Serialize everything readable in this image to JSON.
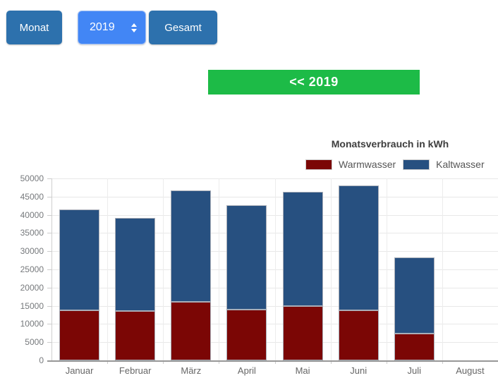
{
  "toolbar": {
    "monat_label": "Monat",
    "year_value": "2019",
    "gesamt_label": "Gesamt"
  },
  "year_nav": {
    "label": "<< 2019"
  },
  "colors": {
    "button_blue": "#2d71ad",
    "select_blue": "#4286f5",
    "nav_green": "#1dbb47",
    "warmwasser_red": "#7b0605",
    "kaltwasser_blue": "#275080",
    "axis_text_gray": "#76797c",
    "month_text_gray": "#666666"
  },
  "chart_data": {
    "type": "bar",
    "stacked": true,
    "title": "Monatsverbrauch in kWh",
    "categories": [
      "Januar",
      "Februar",
      "März",
      "April",
      "Mai",
      "Juni",
      "Juli",
      "August"
    ],
    "series": [
      {
        "name": "Warmwasser",
        "color": "#7b0605",
        "values": [
          13800,
          13600,
          16000,
          13900,
          15000,
          13800,
          7400,
          0
        ]
      },
      {
        "name": "Kaltwasser",
        "color": "#275080",
        "values": [
          27600,
          25500,
          30700,
          28700,
          31400,
          34300,
          20800,
          0
        ]
      }
    ],
    "totals": [
      41400,
      39100,
      46700,
      42600,
      46400,
      48100,
      28200,
      0
    ],
    "xlabel": "",
    "ylabel": "",
    "ylim": [
      0,
      50000
    ],
    "ytick_step": 5000,
    "grid": true,
    "legend_position": "top-right"
  }
}
